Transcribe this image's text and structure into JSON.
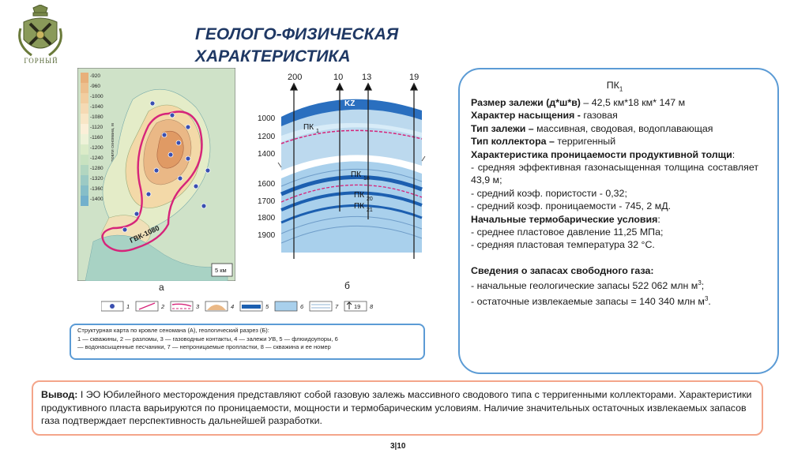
{
  "logo": {
    "text": "ГОРНЫЙ"
  },
  "title": {
    "line1": "ГЕОЛОГО-ФИЗИЧЕСКАЯ",
    "line2": "ХАРАКТЕРИСТИКА"
  },
  "map": {
    "scale_values": [
      "-920",
      "-960",
      "-1000",
      "-1040",
      "-1080",
      "-1120",
      "-1160",
      "-1200",
      "-1240",
      "-1280",
      "-1320",
      "-1360",
      "-1400"
    ],
    "scale_title": "Шкала абс. глубин кровли сеномана, м",
    "contact_label": "ГВК-1080",
    "scale_bar": "5 км",
    "label": "а"
  },
  "section": {
    "wells": [
      "200",
      "10",
      "13",
      "19"
    ],
    "depths": [
      "1000",
      "1200",
      "1400",
      "1600",
      "1700",
      "1800",
      "1900"
    ],
    "kz_label": "KZ",
    "pk1_label": "ПК",
    "pk1_sub": "1",
    "pk18_label": "ПК",
    "pk18_sub": "18",
    "pk20_label": "ПК",
    "pk20_sub": "20",
    "pk21_label": "ПК",
    "pk21_sub": "21",
    "label": "б"
  },
  "legend": {
    "numbers": [
      "1",
      "2",
      "3",
      "4",
      "5",
      "6",
      "7",
      "8"
    ],
    "well_number": "19"
  },
  "caption": {
    "line1": "Структурная карта по кровле сеномана (А),  геологический разрез (Б):",
    "line2": "1 — скважины, 2 — разломы, 3 — газоводные контакты, 4 — залежи УВ, 5 — флюидоупоры, 6",
    "line3": "— водонасыщенные песчаники, 7 — непроницаемые пропластки, 8 — скважина и ее номер"
  },
  "info": {
    "heading": "ПК",
    "heading_sub": "1",
    "size_label": "Размер залежи (д*ш*в)",
    "size_value": " – 42,5 км*18 км* 147 м",
    "saturation_label": "Характер насыщения - ",
    "saturation_value": "газовая",
    "type_label": "Тип залежи – ",
    "type_value": "массивная, сводовая, водоплавающая",
    "collector_label": "Тип коллектора – ",
    "collector_value": "терригенный",
    "perm_heading": "Характеристика проницаемости продуктивной толщи",
    "perm_colon": ":",
    "perm_items": [
      "- средняя эффективная газонасыщенная толщина составляет 43,9 м;",
      "- средний коэф. пористости - 0,32;",
      "- средний коэф. проницаемости - 745, 2 мД."
    ],
    "thermo_heading": "Начальные термобарические условия",
    "thermo_colon": ":",
    "thermo_items": [
      "- среднее пластовое давление 11,25 МПа;",
      "- средняя пластовая температура 32 °С."
    ],
    "reserves_heading": "Сведения о запасах свободного газа:",
    "reserves_item1": "- начальные геологические запасы 522 062 млн м",
    "reserves_item1_sup": "3",
    "reserves_item1_end": ";",
    "reserves_item2": "- остаточные извлекаемые запасы = 140 340 млн м",
    "reserves_item2_sup": "3",
    "reserves_item2_end": "."
  },
  "conclusion": {
    "label": "Вывод:",
    "text": " I ЭО Юбилейного месторождения представляют собой газовую залежь массивного сводового типа с терригенными коллекторами. Характеристики продуктивного пласта варьируются по проницаемости, мощности и термобарическим условиям. Наличие значительных остаточных извлекаемых запасов газа подтверждает перспективность дальнейшей разработки."
  },
  "page": {
    "number": "3|10"
  },
  "colors": {
    "title": "#1f3864",
    "box_border": "#5b9bd5",
    "conclusion_border": "#f4a58a",
    "contact_line": "#d6247a"
  }
}
